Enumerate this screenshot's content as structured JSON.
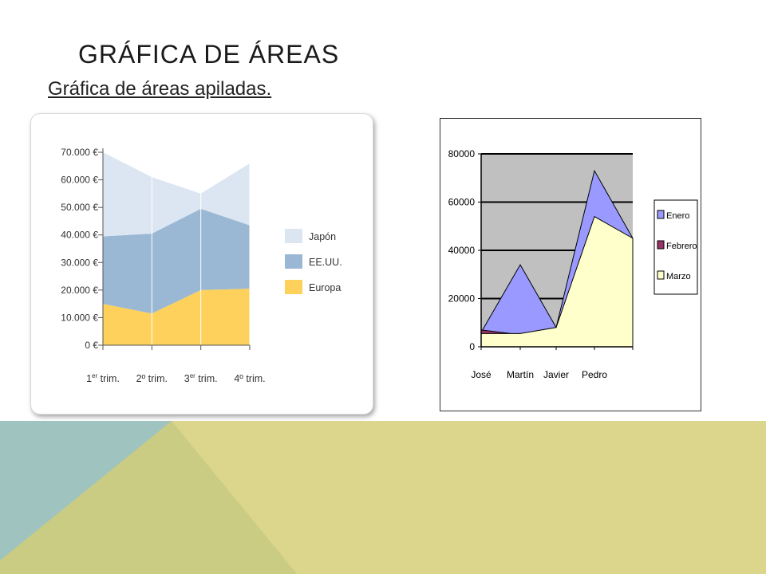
{
  "slide": {
    "title": "GRÁFICA DE ÁREAS",
    "subtitle": "Gráfica de áreas apiladas."
  },
  "colors": {
    "deco_teal": "#9fc3bf",
    "deco_olive": "#c9cc82",
    "deco_khaki": "#dcd58c"
  },
  "chart_data": [
    {
      "type": "area",
      "stacked": true,
      "categories": [
        "1er trim.",
        "2º trim.",
        "3er trim.",
        "4º trim."
      ],
      "category_labels": [
        {
          "base": "1",
          "sup": "er",
          "rest": " trim."
        },
        {
          "base": "2º trim.",
          "sup": "",
          "rest": ""
        },
        {
          "base": "3",
          "sup": "er",
          "rest": " trim."
        },
        {
          "base": "4º trim.",
          "sup": "",
          "rest": ""
        }
      ],
      "series": [
        {
          "name": "Europa",
          "color": "#fdd15c",
          "values": [
            15000,
            11500,
            20000,
            20500
          ]
        },
        {
          "name": "EE.UU.",
          "color": "#9ab8d4",
          "values": [
            24500,
            29000,
            29500,
            23000
          ]
        },
        {
          "name": "Japón",
          "color": "#dce6f2",
          "values": [
            30500,
            20500,
            5500,
            22500
          ]
        }
      ],
      "legend_order": [
        "Japón",
        "EE.UU.",
        "Europa"
      ],
      "yticks": [
        "0 €",
        "10.000 €",
        "20.000 €",
        "30.000 €",
        "40.000 €",
        "50.000 €",
        "60.000 €",
        "70.000 €"
      ],
      "ylim": [
        0,
        70000
      ],
      "legend": "right",
      "grid": false
    },
    {
      "type": "area",
      "stacked": false,
      "categories": [
        "José",
        "Martín",
        "Javier",
        "Pedro"
      ],
      "series": [
        {
          "name": "Enero",
          "color": "#9999ff",
          "values": [
            6000,
            34000,
            8000,
            73000
          ]
        },
        {
          "name": "Febrero",
          "color": "#993366",
          "values": [
            7000,
            5000,
            7000,
            52000
          ]
        },
        {
          "name": "Marzo",
          "color": "#ffffcc",
          "values": [
            5500,
            5500,
            8000,
            54000
          ]
        }
      ],
      "end_values": {
        "Enero": 45000,
        "Febrero": 45000,
        "Marzo": 45000
      },
      "yticks": [
        "0",
        "20000",
        "40000",
        "60000",
        "80000"
      ],
      "ylim": [
        0,
        80000
      ],
      "legend": "right",
      "grid": true,
      "plot_background": "#c0c0c0"
    }
  ]
}
